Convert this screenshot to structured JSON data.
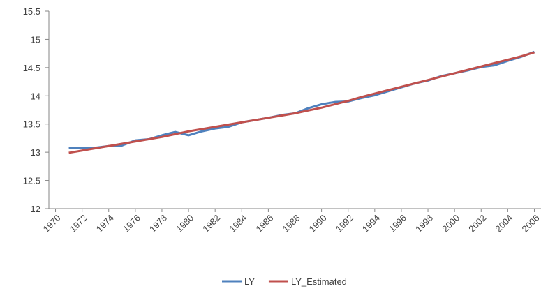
{
  "chart_data": {
    "type": "line",
    "x": [
      1971,
      1972,
      1973,
      1974,
      1975,
      1976,
      1977,
      1978,
      1979,
      1980,
      1981,
      1982,
      1983,
      1984,
      1985,
      1986,
      1987,
      1988,
      1989,
      1990,
      1991,
      1992,
      1993,
      1994,
      1995,
      1996,
      1997,
      1998,
      1999,
      2000,
      2001,
      2002,
      2003,
      2004,
      2005,
      2006
    ],
    "series": [
      {
        "name": "LY",
        "color": "#4f81bd",
        "values": [
          13.07,
          13.08,
          13.08,
          13.11,
          13.12,
          13.21,
          13.23,
          13.3,
          13.36,
          13.3,
          13.37,
          13.42,
          13.45,
          13.53,
          13.57,
          13.61,
          13.66,
          13.69,
          13.78,
          13.85,
          13.89,
          13.9,
          13.96,
          14.01,
          14.08,
          14.15,
          14.22,
          14.27,
          14.35,
          14.4,
          14.45,
          14.51,
          14.54,
          14.62,
          14.69,
          14.78
        ]
      },
      {
        "name": "LY_Estimated",
        "color": "#c0504d",
        "values": [
          12.99,
          13.03,
          13.07,
          13.11,
          13.15,
          13.19,
          13.23,
          13.27,
          13.32,
          13.37,
          13.41,
          13.45,
          13.49,
          13.53,
          13.57,
          13.61,
          13.65,
          13.69,
          13.74,
          13.79,
          13.85,
          13.91,
          13.98,
          14.04,
          14.1,
          14.16,
          14.22,
          14.28,
          14.34,
          14.4,
          14.46,
          14.52,
          14.58,
          14.64,
          14.7,
          14.77
        ]
      }
    ],
    "xlim": [
      1969.5,
      2006.5
    ],
    "xticks": [
      1970,
      1972,
      1974,
      1976,
      1978,
      1980,
      1982,
      1984,
      1986,
      1988,
      1990,
      1992,
      1994,
      1996,
      1998,
      2000,
      2002,
      2004,
      2006
    ],
    "ylim": [
      12,
      15.5
    ],
    "yticks": [
      12,
      12.5,
      13,
      13.5,
      14,
      14.5,
      15,
      15.5
    ],
    "grid": false,
    "legend": "bottom"
  }
}
